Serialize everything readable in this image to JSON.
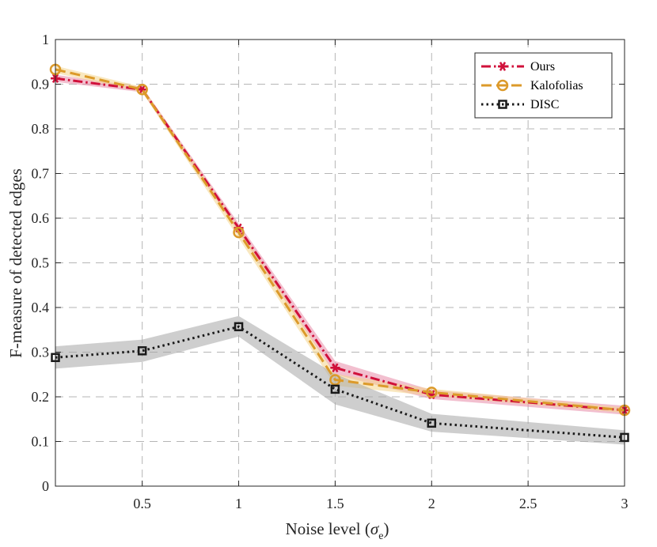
{
  "chart_data": {
    "type": "line",
    "title": "",
    "xlabel": "Noise level (",
    "xlabel_symbol": "σ",
    "xlabel_subscript": "e",
    "xlabel_close": ")",
    "ylabel": "F-measure of detected edges",
    "xlim": [
      0.05,
      3
    ],
    "ylim": [
      0,
      1
    ],
    "xticks": [
      0.5,
      1,
      1.5,
      2,
      2.5,
      3
    ],
    "xtick_labels": [
      "0.5",
      "1",
      "1.5",
      "2",
      "2.5",
      "3"
    ],
    "yticks": [
      0,
      0.1,
      0.2,
      0.3,
      0.4,
      0.5,
      0.6,
      0.7,
      0.8,
      0.9,
      1
    ],
    "ytick_labels": [
      "0",
      "0.1",
      "0.2",
      "0.3",
      "0.4",
      "0.5",
      "0.6",
      "0.7",
      "0.8",
      "0.9",
      "1"
    ],
    "grid": true,
    "legend_position": "top-right",
    "x": [
      0.05,
      0.5,
      1,
      1.5,
      2,
      3
    ],
    "series": [
      {
        "name": "Ours",
        "color": "#d0103a",
        "band_color": "#e88aa8",
        "line_style": "dash-dot",
        "marker": "asterisk",
        "values": [
          0.913,
          0.888,
          0.578,
          0.265,
          0.205,
          0.17
        ],
        "lower": [
          0.905,
          0.882,
          0.568,
          0.25,
          0.195,
          0.16
        ],
        "upper": [
          0.921,
          0.894,
          0.588,
          0.28,
          0.215,
          0.18
        ]
      },
      {
        "name": "Kalofolias",
        "color": "#dc9a2a",
        "band_color": "#f4d58c",
        "line_style": "dashed",
        "marker": "circle",
        "values": [
          0.933,
          0.888,
          0.568,
          0.238,
          0.21,
          0.17
        ],
        "lower": [
          0.925,
          0.882,
          0.555,
          0.225,
          0.202,
          0.164
        ],
        "upper": [
          0.941,
          0.894,
          0.581,
          0.251,
          0.218,
          0.176
        ]
      },
      {
        "name": "DISC",
        "color": "#1a1a1a",
        "band_color": "#a6a6a6",
        "line_style": "dotted",
        "marker": "square",
        "values": [
          0.288,
          0.303,
          0.357,
          0.217,
          0.141,
          0.109
        ],
        "lower": [
          0.263,
          0.278,
          0.335,
          0.183,
          0.122,
          0.093
        ],
        "upper": [
          0.313,
          0.328,
          0.381,
          0.251,
          0.162,
          0.125
        ]
      }
    ]
  }
}
